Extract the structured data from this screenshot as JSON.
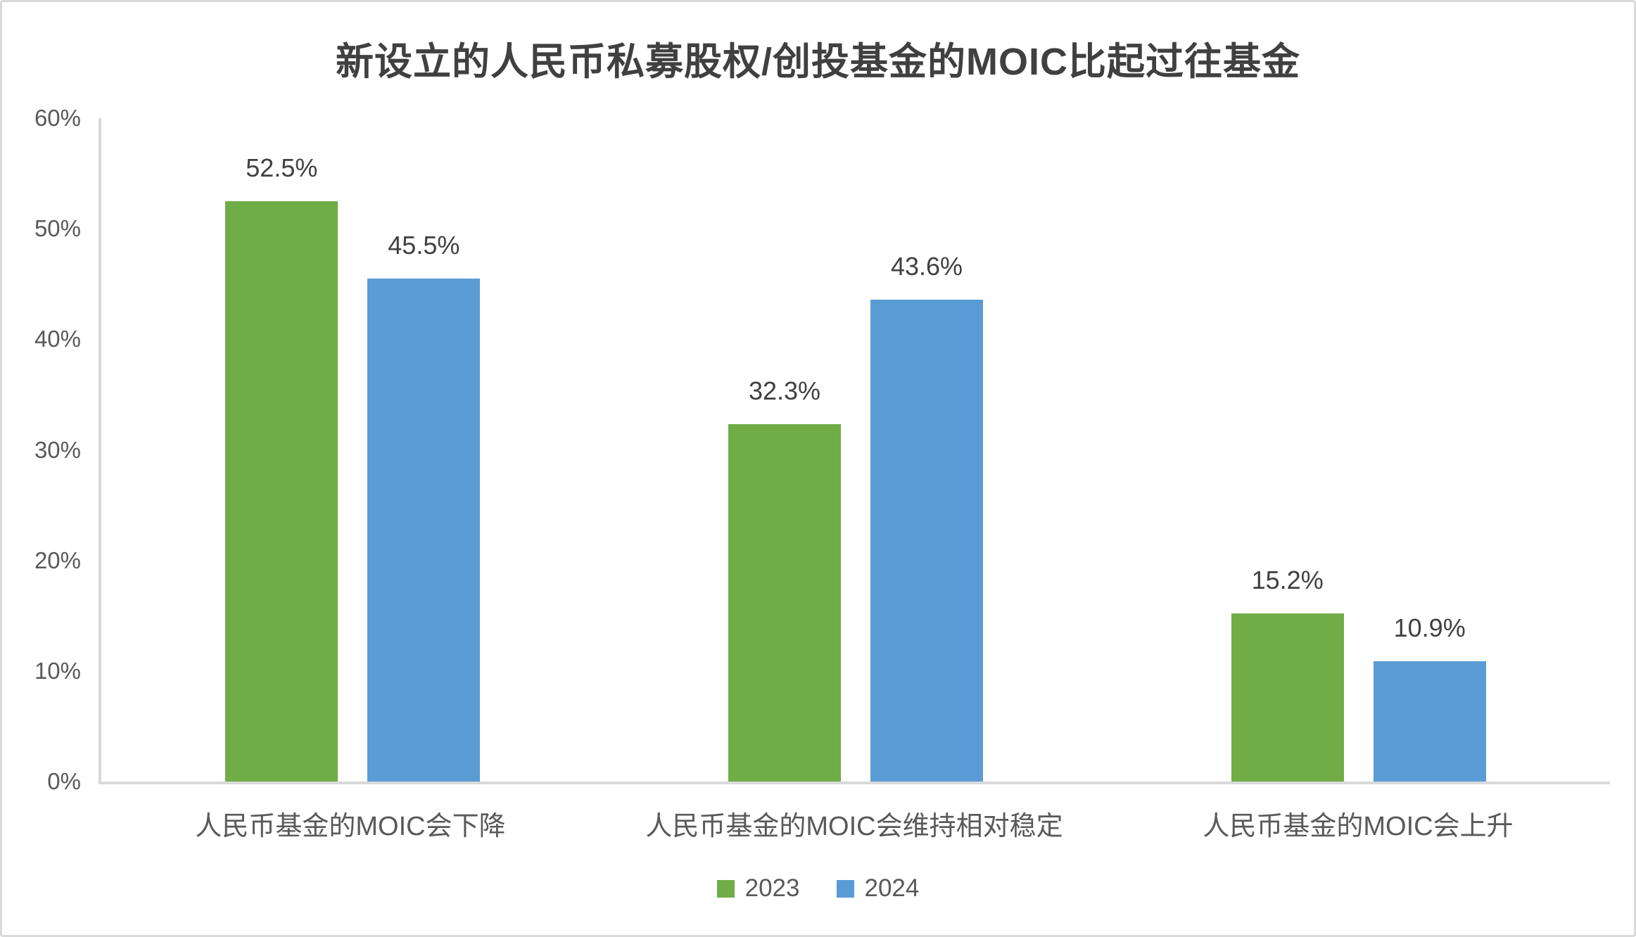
{
  "colors": {
    "series_2023_green": "#70AD47",
    "series_2024_blue": "#5B9BD5",
    "axis_line": "#D9D9D9",
    "title_text": "#404040",
    "data_label_text": "#404040",
    "tick_text": "#595959",
    "category_text": "#595959",
    "background": "#FFFFFF",
    "frame_border": "#D9D9D9"
  },
  "chart_data": {
    "type": "bar",
    "title": "新设立的人民币私募股权/创投基金的MOIC比起过往基金",
    "categories": [
      "人民币基金的MOIC会下降",
      "人民币基金的MOIC会维持相对稳定",
      "人民币基金的MOIC会上升"
    ],
    "series": [
      {
        "name": "2023",
        "color": "#70AD47",
        "values": [
          52.5,
          32.3,
          15.2
        ]
      },
      {
        "name": "2024",
        "color": "#5B9BD5",
        "values": [
          45.5,
          43.6,
          10.9
        ]
      }
    ],
    "data_labels": [
      "52.5%",
      "45.5%",
      "32.3%",
      "43.6%",
      "15.2%",
      "10.9%"
    ],
    "value_suffix": "%",
    "xlabel": "",
    "ylabel": "",
    "ylim": [
      0,
      60
    ],
    "yticks": [
      "0%",
      "10%",
      "20%",
      "30%",
      "40%",
      "50%",
      "60%"
    ],
    "grid": false,
    "legend_position": "bottom-center",
    "legend": [
      "2023",
      "2024"
    ]
  }
}
